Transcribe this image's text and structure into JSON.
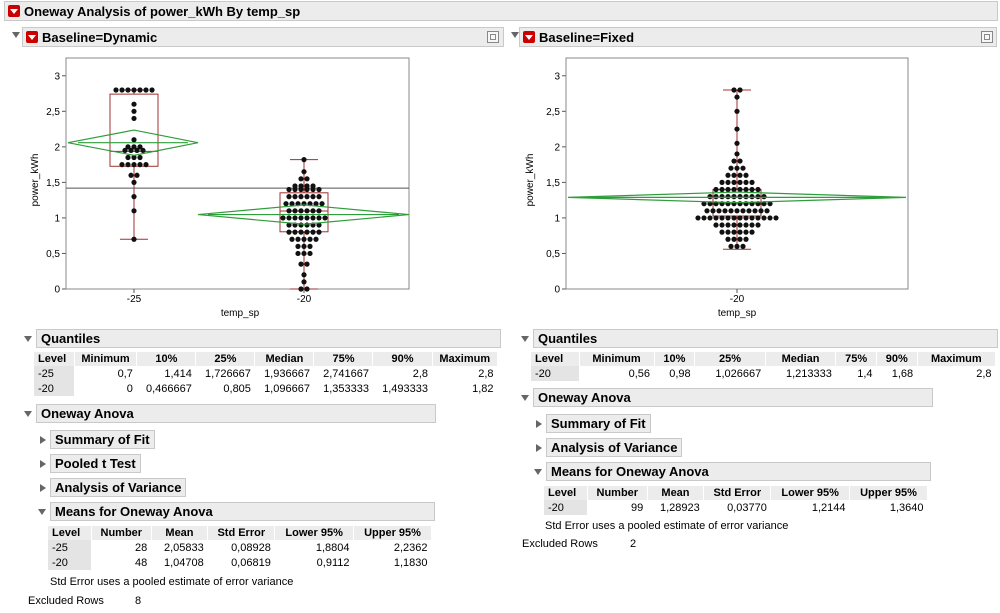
{
  "title": "Oneway Analysis of power_kWh By temp_sp",
  "left": {
    "header": "Baseline=Dynamic",
    "y_axis_label": "power_kWh",
    "x_axis_label": "temp_sp",
    "y_ticks": [
      "3",
      "2,5",
      "2",
      "1,5",
      "1",
      "0,5",
      "0"
    ],
    "x_ticks": [
      "-25",
      "-20"
    ],
    "quantiles": {
      "title": "Quantiles",
      "columns": [
        "Level",
        "Minimum",
        "10%",
        "25%",
        "Median",
        "75%",
        "90%",
        "Maximum"
      ],
      "rows": [
        [
          "-25",
          "0,7",
          "1,414",
          "1,726667",
          "1,936667",
          "2,741667",
          "2,8",
          "2,8"
        ],
        [
          "-20",
          "0",
          "0,466667",
          "0,805",
          "1,096667",
          "1,353333",
          "1,493333",
          "1,82"
        ]
      ]
    },
    "anova_title": "Oneway Anova",
    "summary_fit": "Summary of Fit",
    "pooled_t": "Pooled t Test",
    "analysis_variance": "Analysis of Variance",
    "means": {
      "title": "Means for Oneway Anova",
      "columns": [
        "Level",
        "Number",
        "Mean",
        "Std Error",
        "Lower 95%",
        "Upper 95%"
      ],
      "rows": [
        [
          "-25",
          "28",
          "2,05833",
          "0,08928",
          "1,8804",
          "2,2362"
        ],
        [
          "-20",
          "48",
          "1,04708",
          "0,06819",
          "0,9112",
          "1,1830"
        ]
      ],
      "note": "Std Error uses a pooled estimate of error variance"
    },
    "excluded_label": "Excluded Rows",
    "excluded_value": "8"
  },
  "right": {
    "header": "Baseline=Fixed",
    "y_axis_label": "power_kWh",
    "x_axis_label": "temp_sp",
    "y_ticks": [
      "3",
      "2,5",
      "2",
      "1,5",
      "1",
      "0,5",
      "0"
    ],
    "x_ticks": [
      "-20"
    ],
    "quantiles": {
      "title": "Quantiles",
      "columns": [
        "Level",
        "Minimum",
        "10%",
        "25%",
        "Median",
        "75%",
        "90%",
        "Maximum"
      ],
      "rows": [
        [
          "-20",
          "0,56",
          "0,98",
          "1,026667",
          "1,213333",
          "1,4",
          "1,68",
          "2,8"
        ]
      ]
    },
    "anova_title": "Oneway Anova",
    "summary_fit": "Summary of Fit",
    "analysis_variance": "Analysis of Variance",
    "means": {
      "title": "Means for Oneway Anova",
      "columns": [
        "Level",
        "Number",
        "Mean",
        "Std Error",
        "Lower 95%",
        "Upper 95%"
      ],
      "rows": [
        [
          "-20",
          "99",
          "1,28923",
          "0,03770",
          "1,2144",
          "1,3640"
        ]
      ],
      "note": "Std Error uses a pooled estimate of error variance"
    },
    "excluded_label": "Excluded Rows",
    "excluded_value": "2"
  },
  "colors": {
    "accent_red": "#cc0000",
    "box": "#a03030",
    "diamond": "#2e9e3a"
  }
}
